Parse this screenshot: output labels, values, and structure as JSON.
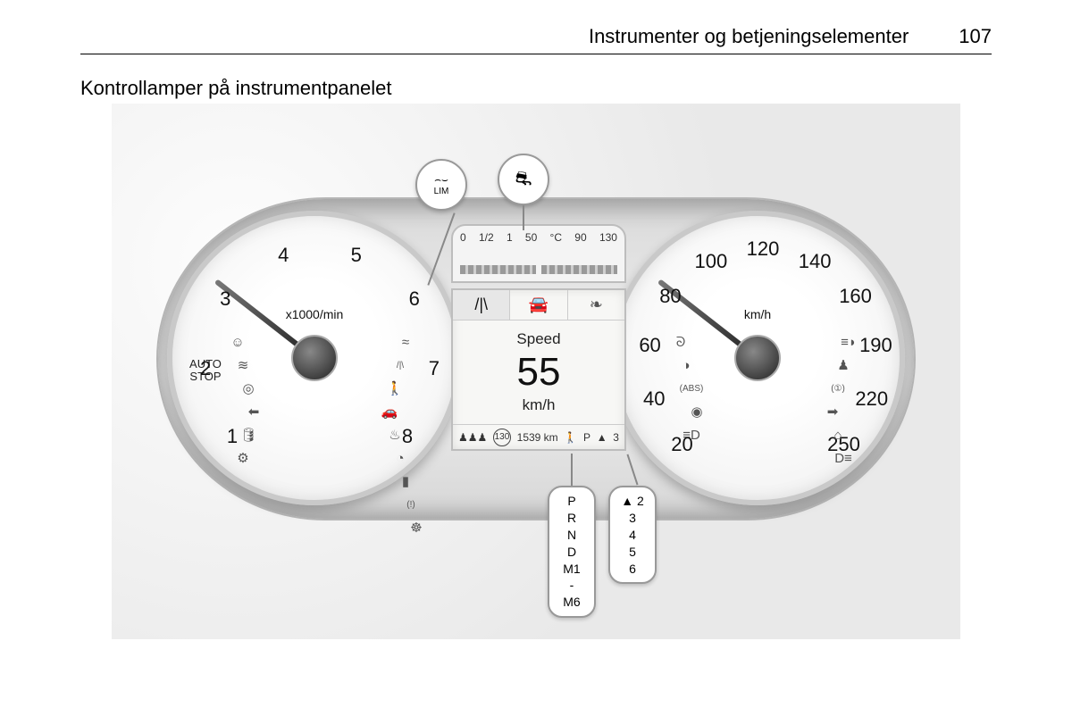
{
  "page": {
    "header_title": "Instrumenter og betjeningselementer",
    "page_number": "107",
    "subtitle": "Kontrollamper på instrumentpanelet"
  },
  "tachometer": {
    "unit_label": "x1000/min",
    "ticks": [
      "1",
      "2",
      "3",
      "4",
      "5",
      "6",
      "7",
      "8"
    ],
    "needle_angle_deg": 128,
    "autostop_label": "AUTO\nSTOP",
    "indicators_left_col": [
      "person-off",
      "slip-off",
      "steer-off",
      "left-turn",
      "oil-can",
      "engine"
    ],
    "indicators_right_col": [
      "slip",
      "lane",
      "pedestrian",
      "car-front",
      "coolant",
      "gauge",
      "battery",
      "tpms",
      "steering"
    ]
  },
  "speedometer": {
    "unit_label": "km/h",
    "ticks": [
      "20",
      "40",
      "60",
      "80",
      "100",
      "120",
      "140",
      "160",
      "190",
      "220",
      "250"
    ],
    "needle_angle_deg": 128,
    "indicators_left_col": [
      "glow-plug",
      "cruise",
      "abs",
      "airbag",
      "fog-rear"
    ],
    "indicators_right_col": [
      "high-beam",
      "seatbelt",
      "brake",
      "right-turn",
      "car-key",
      "fog-light"
    ]
  },
  "center_display": {
    "fuel_markers": [
      "0",
      "1/2",
      "1"
    ],
    "temp_markers": [
      "50",
      "°C",
      "90",
      "130"
    ],
    "tabs": [
      {
        "icon": "lane",
        "active": true
      },
      {
        "icon": "car-side",
        "active": false
      },
      {
        "icon": "leaf",
        "active": false
      }
    ],
    "speed_label": "Speed",
    "speed_value": "55",
    "speed_unit": "km/h",
    "bottom": {
      "seat_icons": "seatbelt-row",
      "limit": "130",
      "odometer": "1539 km",
      "ped_icon": "pedestrian",
      "gear": "P",
      "tri": "▲",
      "tri_num": "3"
    }
  },
  "callouts": {
    "top_left": {
      "line1": "⌒",
      "line2": "LIM"
    },
    "top_right": {
      "glyph": "⚙"
    },
    "gearbox": [
      "P",
      "R",
      "N",
      "D",
      "M1",
      "-",
      "M6"
    ],
    "shift": [
      "▲ 2",
      "3",
      "4",
      "5",
      "6"
    ]
  },
  "colors": {
    "page_bg": "#ffffff",
    "text": "#111111",
    "border": "#bdbdbd",
    "housing_light": "#f0f0f0",
    "housing_dark": "#d6d6d6",
    "dial_face": "#ffffff",
    "needle": "#333333",
    "icon": "#555555"
  },
  "icons": {
    "person-off": "☺",
    "slip-off": "≋",
    "steer-off": "◎",
    "left-turn": "⬅",
    "oil-can": "🛢",
    "engine": "⚙",
    "slip": "≈",
    "lane": "/|\\",
    "pedestrian": "🚶",
    "car-front": "🚗",
    "coolant": "♨",
    "gauge": "◔",
    "battery": "▮",
    "tpms": "(!)",
    "steering": "☸",
    "glow-plug": "ᘐ",
    "cruise": "◑",
    "abs": "(ABS)",
    "airbag": "◉",
    "fog-rear": "≡D",
    "high-beam": "≡◗",
    "seatbelt": "♟",
    "brake": "(①)",
    "right-turn": "➡",
    "car-key": "⌂",
    "fog-light": "D≡",
    "car-side": "🚘",
    "leaf": "❧",
    "seatbelt-row": "♟♟♟",
    "temp": "🌡"
  }
}
